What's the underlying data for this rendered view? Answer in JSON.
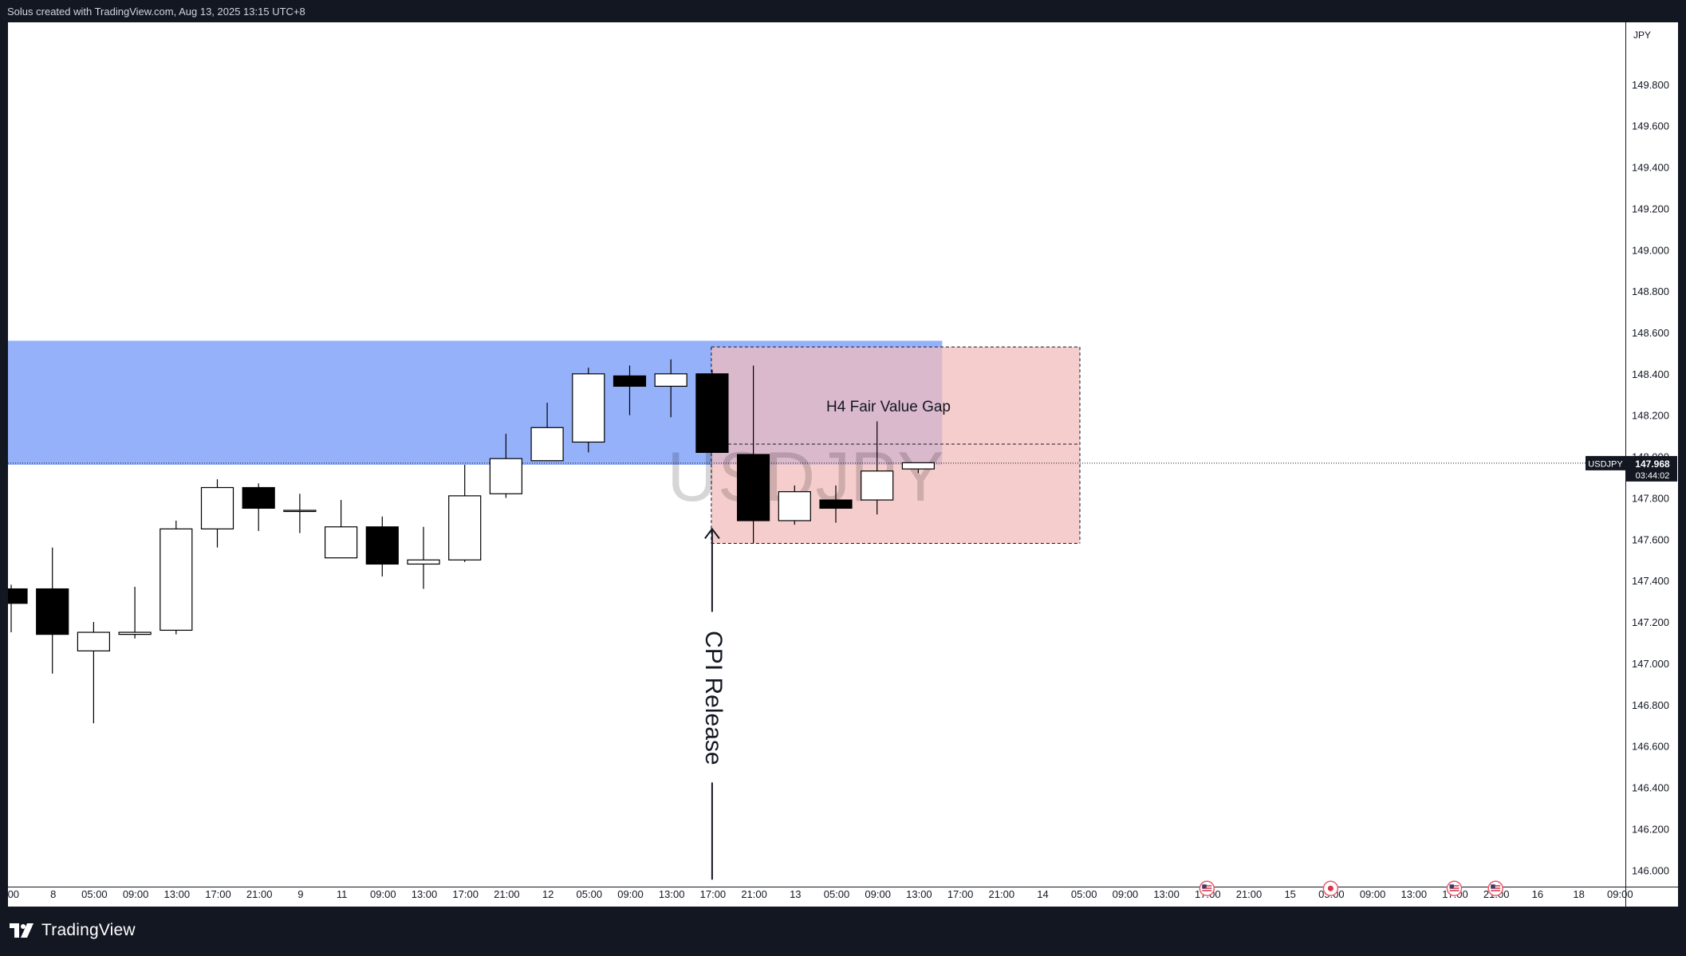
{
  "attribution": "Solus created with TradingView.com, Aug 13, 2025 13:15 UTC+8",
  "brand": {
    "name": "TradingView",
    "icon": "tradingview-logo-icon"
  },
  "chart_data": {
    "type": "candlestick",
    "symbol": "USDJPY",
    "currency": "JPY",
    "watermark": "USDJPY",
    "price_label": {
      "symbol": "USDJPY",
      "price": "147.968",
      "countdown": "03:44:02",
      "value": 147.968
    },
    "ylim": [
      145.92,
      150.1
    ],
    "yticks": [
      {
        "v": 149.8,
        "label": "149.800"
      },
      {
        "v": 149.6,
        "label": "149.600"
      },
      {
        "v": 149.4,
        "label": "149.400"
      },
      {
        "v": 149.2,
        "label": "149.200"
      },
      {
        "v": 149.0,
        "label": "149.000"
      },
      {
        "v": 148.8,
        "label": "148.800"
      },
      {
        "v": 148.6,
        "label": "148.600"
      },
      {
        "v": 148.4,
        "label": "148.400"
      },
      {
        "v": 148.2,
        "label": "148.200"
      },
      {
        "v": 148.0,
        "label": "148.000"
      },
      {
        "v": 147.8,
        "label": "147.800"
      },
      {
        "v": 147.6,
        "label": "147.600"
      },
      {
        "v": 147.4,
        "label": "147.400"
      },
      {
        "v": 147.2,
        "label": "147.200"
      },
      {
        "v": 147.0,
        "label": "147.000"
      },
      {
        "v": 146.8,
        "label": "146.800"
      },
      {
        "v": 146.6,
        "label": "146.600"
      },
      {
        "v": 146.4,
        "label": "146.400"
      },
      {
        "v": 146.2,
        "label": "146.200"
      },
      {
        "v": 146.0,
        "label": "146.000"
      }
    ],
    "xticks": [
      ":00",
      "8",
      "05:00",
      "09:00",
      "13:00",
      "17:00",
      "21:00",
      "9",
      "11",
      "09:00",
      "13:00",
      "17:00",
      "21:00",
      "12",
      "05:00",
      "09:00",
      "13:00",
      "17:00",
      "21:00",
      "13",
      "05:00",
      "09:00",
      "13:00",
      "17:00",
      "21:00",
      "14",
      "05:00",
      "09:00",
      "13:00",
      "17:00",
      "21:00",
      "15",
      "05:00",
      "09:00",
      "13:00",
      "17:00",
      "21:00",
      "16",
      "18",
      "09:00"
    ],
    "candles": [
      {
        "o": 147.36,
        "h": 147.38,
        "l": 147.15,
        "c": 147.29
      },
      {
        "o": 147.36,
        "h": 147.56,
        "l": 146.95,
        "c": 147.14
      },
      {
        "o": 147.06,
        "h": 147.2,
        "l": 146.71,
        "c": 147.15
      },
      {
        "o": 147.14,
        "h": 147.37,
        "l": 147.12,
        "c": 147.15
      },
      {
        "o": 147.16,
        "h": 147.69,
        "l": 147.14,
        "c": 147.65
      },
      {
        "o": 147.65,
        "h": 147.89,
        "l": 147.56,
        "c": 147.85
      },
      {
        "o": 147.85,
        "h": 147.87,
        "l": 147.64,
        "c": 147.75
      },
      {
        "o": 147.74,
        "h": 147.82,
        "l": 147.63,
        "c": 147.74
      },
      {
        "o": 147.51,
        "h": 147.79,
        "l": 147.51,
        "c": 147.66
      },
      {
        "o": 147.66,
        "h": 147.71,
        "l": 147.42,
        "c": 147.48
      },
      {
        "o": 147.48,
        "h": 147.66,
        "l": 147.36,
        "c": 147.5
      },
      {
        "o": 147.5,
        "h": 147.96,
        "l": 147.49,
        "c": 147.81
      },
      {
        "o": 147.82,
        "h": 148.11,
        "l": 147.8,
        "c": 147.99
      },
      {
        "o": 147.98,
        "h": 148.26,
        "l": 147.98,
        "c": 148.14
      },
      {
        "o": 148.07,
        "h": 148.43,
        "l": 148.02,
        "c": 148.4
      },
      {
        "o": 148.39,
        "h": 148.44,
        "l": 148.2,
        "c": 148.34
      },
      {
        "o": 148.34,
        "h": 148.47,
        "l": 148.19,
        "c": 148.4
      },
      {
        "o": 148.4,
        "h": 148.42,
        "l": 148.02,
        "c": 148.02
      },
      {
        "o": 148.01,
        "h": 148.44,
        "l": 147.58,
        "c": 147.69
      },
      {
        "o": 147.69,
        "h": 147.86,
        "l": 147.67,
        "c": 147.83
      },
      {
        "o": 147.79,
        "h": 147.86,
        "l": 147.68,
        "c": 147.75
      },
      {
        "o": 147.79,
        "h": 148.17,
        "l": 147.72,
        "c": 147.93
      },
      {
        "o": 147.94,
        "h": 147.97,
        "l": 147.92,
        "c": 147.97
      }
    ],
    "zones": {
      "supply_zone": {
        "top": 148.56,
        "bottom": 147.96,
        "color": "#8aa9f9"
      },
      "fvg_box": {
        "top": 148.53,
        "bottom": 147.58,
        "mid": 148.06,
        "color": "#f3bcbc"
      }
    },
    "annotations": {
      "fvg_label": "H4 Fair Value Gap",
      "event_label": "CPI Release"
    },
    "events": [
      "us-flag-icon",
      "red-dot-icon",
      "us-flag-icon",
      "us-flag-icon"
    ]
  }
}
